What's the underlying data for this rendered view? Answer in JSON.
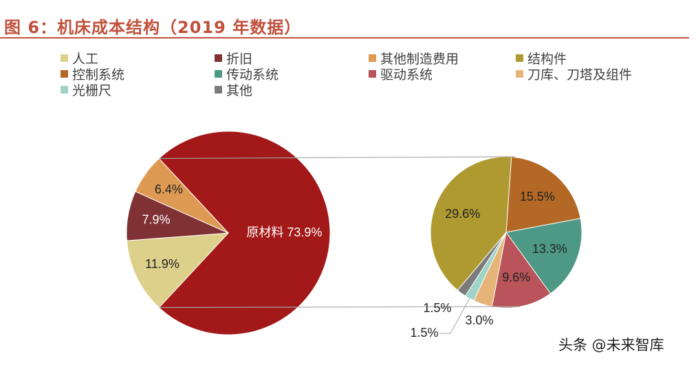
{
  "title": "图 6：机床成本结构（2019 年数据）",
  "watermark": "头条 @未来智库",
  "chart_data": {
    "type": "pie",
    "legend": [
      {
        "name": "人工",
        "color": "#ddd08a"
      },
      {
        "name": "折旧",
        "color": "#7f3134"
      },
      {
        "name": "其他制造费用",
        "color": "#de9a52"
      },
      {
        "name": "结构件",
        "color": "#ae9a30"
      },
      {
        "name": "控制系统",
        "color": "#b36825"
      },
      {
        "name": "传动系统",
        "color": "#4d9985"
      },
      {
        "name": "驱动系统",
        "color": "#b9545a"
      },
      {
        "name": "刀库、刀塔及组件",
        "color": "#e6b479"
      },
      {
        "name": "光栅尺",
        "color": "#9fd3c8"
      },
      {
        "name": "其他",
        "color": "#7b7b7b"
      }
    ],
    "main_pie": {
      "slices": [
        {
          "name": "原材料",
          "value": 73.9,
          "label": "原材料 73.9%",
          "color": "#a31818"
        },
        {
          "name": "人工",
          "value": 11.9,
          "label": "11.9%",
          "color": "#ddd08a"
        },
        {
          "name": "折旧",
          "value": 7.9,
          "label": "7.9%",
          "color": "#7f3134"
        },
        {
          "name": "其他制造费用",
          "value": 6.4,
          "label": "6.4%",
          "color": "#de9a52"
        }
      ]
    },
    "breakdown_pie": {
      "of": "原材料",
      "slices": [
        {
          "name": "控制系统",
          "value": 15.5,
          "label": "15.5%",
          "color": "#b36825"
        },
        {
          "name": "传动系统",
          "value": 13.3,
          "label": "13.3%",
          "color": "#4d9985"
        },
        {
          "name": "驱动系统",
          "value": 9.6,
          "label": "9.6%",
          "color": "#b9545a"
        },
        {
          "name": "刀库、刀塔及组件",
          "value": 3.0,
          "label": "3.0%",
          "color": "#e6b479"
        },
        {
          "name": "光栅尺",
          "value": 1.5,
          "label": "1.5%",
          "color": "#9fd3c8"
        },
        {
          "name": "其他",
          "value": 1.5,
          "label": "1.5%",
          "color": "#7b7b7b"
        },
        {
          "name": "结构件",
          "value": 29.6,
          "label": "29.6%",
          "color": "#ae9a30"
        }
      ]
    }
  }
}
